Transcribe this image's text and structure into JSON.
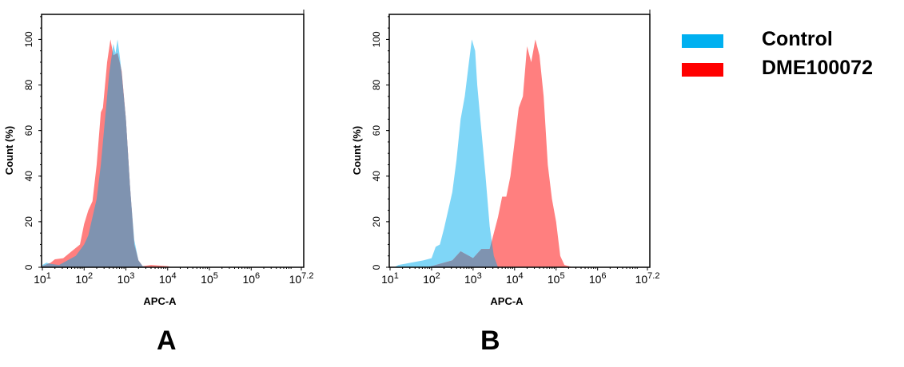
{
  "legend": [
    {
      "label": "Control",
      "color": "#00B0F0"
    },
    {
      "label": "DME100072",
      "color": "#FF0000"
    }
  ],
  "colors": {
    "control_fill": "#7FD6F7",
    "sample_fill": "#FF7F7F",
    "overlap_fill": "#7F93B0"
  },
  "chart_data": [
    {
      "type": "area",
      "panel": "A",
      "xlabel": "APC-A",
      "ylabel": "Count (%)",
      "xscale": "log10",
      "xlim_log10": [
        1,
        7.2
      ],
      "ylim": [
        0,
        111
      ],
      "x_tick_labels": [
        {
          "base": "10",
          "exp": "1"
        },
        {
          "base": "10",
          "exp": "2"
        },
        {
          "base": "10",
          "exp": "3"
        },
        {
          "base": "10",
          "exp": "4"
        },
        {
          "base": "10",
          "exp": "5"
        },
        {
          "base": "10",
          "exp": "6"
        },
        {
          "base": "10",
          "exp": "7.2"
        }
      ],
      "y_ticks": [
        "0",
        "20",
        "40",
        "60",
        "80",
        "100"
      ],
      "series": [
        {
          "name": "Control",
          "x_log10": [
            1.0,
            1.1,
            1.2,
            1.4,
            1.6,
            1.8,
            2.0,
            2.1,
            2.2,
            2.3,
            2.4,
            2.5,
            2.6,
            2.7,
            2.75,
            2.8,
            2.85,
            2.9,
            3.0,
            3.1,
            3.2,
            3.3,
            3.4,
            3.6
          ],
          "y": [
            1,
            2,
            1.5,
            1,
            3,
            5,
            10,
            14,
            22,
            30,
            45,
            65,
            85,
            98,
            94,
            100,
            93,
            85,
            65,
            35,
            12,
            3,
            0.5,
            0
          ]
        },
        {
          "name": "DME100072",
          "x_log10": [
            1.0,
            1.2,
            1.3,
            1.5,
            1.7,
            1.9,
            2.0,
            2.1,
            2.2,
            2.3,
            2.4,
            2.45,
            2.55,
            2.63,
            2.7,
            2.8,
            2.9,
            3.0,
            3.1,
            3.2,
            3.3,
            3.4,
            3.6,
            4.0,
            4.1
          ],
          "y": [
            0.5,
            2,
            3.5,
            4,
            7,
            10,
            19,
            25,
            29,
            45,
            68,
            70,
            90,
            100,
            93,
            94,
            86,
            65,
            35,
            10,
            3,
            0.5,
            1,
            0.5,
            0
          ]
        }
      ]
    },
    {
      "type": "area",
      "panel": "B",
      "xlabel": "APC-A",
      "ylabel": "Count (%)",
      "xscale": "log10",
      "xlim_log10": [
        1,
        7.2
      ],
      "ylim": [
        0,
        111
      ],
      "x_tick_labels": [
        {
          "base": "10",
          "exp": "1"
        },
        {
          "base": "10",
          "exp": "2"
        },
        {
          "base": "10",
          "exp": "3"
        },
        {
          "base": "10",
          "exp": "4"
        },
        {
          "base": "10",
          "exp": "5"
        },
        {
          "base": "10",
          "exp": "6"
        },
        {
          "base": "10",
          "exp": "7.2"
        }
      ],
      "y_ticks": [
        "0",
        "20",
        "40",
        "60",
        "80",
        "100"
      ],
      "series": [
        {
          "name": "Control",
          "x_log10": [
            1.1,
            1.2,
            1.5,
            1.8,
            2.0,
            2.1,
            2.2,
            2.3,
            2.4,
            2.5,
            2.6,
            2.7,
            2.8,
            2.9,
            2.97,
            3.05,
            3.1,
            3.2,
            3.3,
            3.4,
            3.5,
            3.6
          ],
          "y": [
            0,
            1,
            2,
            3,
            4,
            9,
            10,
            17,
            25,
            33,
            47,
            65,
            75,
            90,
            100,
            95,
            80,
            60,
            40,
            18,
            5,
            0
          ]
        },
        {
          "name": "DME100072",
          "x_log10": [
            1.9,
            2.0,
            2.3,
            2.5,
            2.7,
            2.9,
            3.0,
            3.2,
            3.4,
            3.5,
            3.6,
            3.7,
            3.8,
            3.9,
            4.0,
            4.1,
            4.2,
            4.3,
            4.4,
            4.5,
            4.6,
            4.7,
            4.8,
            4.9,
            5.0,
            5.1,
            5.2,
            5.4
          ],
          "y": [
            0,
            0.5,
            2,
            3,
            7,
            5,
            4,
            8,
            8,
            15,
            22,
            31,
            31,
            40,
            55,
            70,
            75,
            97,
            90,
            100,
            93,
            75,
            45,
            30,
            20,
            5,
            1,
            0
          ]
        }
      ]
    }
  ],
  "panel_labels": [
    "A",
    "B"
  ]
}
